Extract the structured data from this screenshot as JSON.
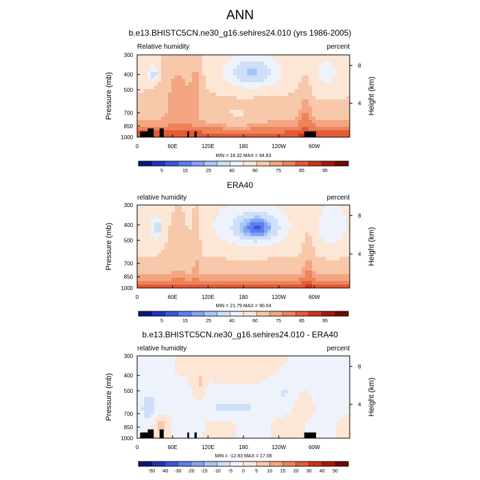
{
  "figure": {
    "title": "ANN"
  },
  "chart_data": [
    {
      "type": "heatmap",
      "title": "b.e13.BHISTC5CN.ne30_g16.sehires24.010 (yrs 1986-2005)",
      "left_label": "Relative humidity",
      "right_label": "percent",
      "xlabel": "",
      "ylabel": "Pressure (mb)",
      "y2label": "Height (km)",
      "x_ticks": [
        "0",
        "60E",
        "120E",
        "180",
        "120W",
        "60W"
      ],
      "x_tick_values": [
        0,
        60,
        120,
        180,
        240,
        300
      ],
      "xlim": [
        0,
        360
      ],
      "y_ticks": [
        "300",
        "400",
        "500",
        "700",
        "850",
        "1000"
      ],
      "y_tick_values": [
        300,
        400,
        500,
        700,
        850,
        1000
      ],
      "ylim": [
        300,
        1000
      ],
      "y2_ticks": [
        "8",
        "4"
      ],
      "y2_tick_values": [
        8,
        4
      ],
      "stats": "MIN = 18.32  MAX = 94.83",
      "min": 18.32,
      "max": 94.83,
      "colorbar_labels": [
        "5",
        "15",
        "25",
        "40",
        "60",
        "75",
        "85",
        "95"
      ],
      "colorbar_levels": [
        5,
        10,
        15,
        20,
        25,
        30,
        40,
        50,
        60,
        70,
        75,
        80,
        85,
        90,
        95
      ],
      "colorbar_colors": [
        "#08187a",
        "#2132b8",
        "#3a55dc",
        "#5b7ef0",
        "#82a4f4",
        "#a9c6f8",
        "#cfdff8",
        "#eef3fb",
        "#fce6d6",
        "#f8c8ab",
        "#f4a582",
        "#ee8258",
        "#e35a36",
        "#cb3318",
        "#a71808",
        "#6e0b03"
      ]
    },
    {
      "type": "heatmap",
      "title": "ERA40",
      "left_label": "relative humidity",
      "right_label": "percent",
      "xlabel": "",
      "ylabel": "Pressure (mb)",
      "y2label": "Height (km)",
      "x_ticks": [
        "0",
        "60E",
        "120E",
        "180",
        "120W",
        "60W"
      ],
      "x_tick_values": [
        0,
        60,
        120,
        180,
        240,
        300
      ],
      "xlim": [
        0,
        360
      ],
      "y_ticks": [
        "300",
        "400",
        "500",
        "700",
        "850",
        "1000"
      ],
      "y_tick_values": [
        300,
        400,
        500,
        700,
        850,
        1000
      ],
      "ylim": [
        300,
        1000
      ],
      "y2_ticks": [
        "8",
        "4"
      ],
      "y2_tick_values": [
        8,
        4
      ],
      "stats": "MIN = 21.79  MAX = 90.04",
      "min": 21.79,
      "max": 90.04,
      "colorbar_labels": [
        "5",
        "15",
        "25",
        "40",
        "60",
        "75",
        "85",
        "95"
      ],
      "colorbar_levels": [
        5,
        10,
        15,
        20,
        25,
        30,
        40,
        50,
        60,
        70,
        75,
        80,
        85,
        90,
        95
      ],
      "colorbar_colors": [
        "#08187a",
        "#2132b8",
        "#3a55dc",
        "#5b7ef0",
        "#82a4f4",
        "#a9c6f8",
        "#cfdff8",
        "#eef3fb",
        "#fce6d6",
        "#f8c8ab",
        "#f4a582",
        "#ee8258",
        "#e35a36",
        "#cb3318",
        "#a71808",
        "#6e0b03"
      ]
    },
    {
      "type": "heatmap",
      "title": "b.e13.BHISTC5CN.ne30_g16.sehires24.010 - ERA40",
      "left_label": "relative humidity",
      "right_label": "percent",
      "xlabel": "",
      "ylabel": "Pressure (mb)",
      "y2label": "Height (km)",
      "x_ticks": [
        "0",
        "60E",
        "120E",
        "180",
        "120W",
        "60W"
      ],
      "x_tick_values": [
        0,
        60,
        120,
        180,
        240,
        300
      ],
      "xlim": [
        0,
        360
      ],
      "y_ticks": [
        "300",
        "400",
        "500",
        "700",
        "850",
        "1000"
      ],
      "y_tick_values": [
        300,
        400,
        500,
        700,
        850,
        1000
      ],
      "ylim": [
        300,
        1000
      ],
      "y2_ticks": [
        "8",
        "4"
      ],
      "y2_tick_values": [
        8,
        4
      ],
      "stats": "MIN = -12.83  MAX = 17.06",
      "min": -12.83,
      "max": 17.06,
      "colorbar_labels": [
        "-50",
        "-40",
        "-30",
        "-20",
        "-15",
        "-10",
        "-5",
        "0",
        "5",
        "10",
        "15",
        "20",
        "30",
        "40",
        "50"
      ],
      "colorbar_levels": [
        -50,
        -40,
        -30,
        -20,
        -15,
        -10,
        -5,
        0,
        5,
        10,
        15,
        20,
        30,
        40,
        50
      ],
      "colorbar_colors": [
        "#08187a",
        "#2132b8",
        "#3a55dc",
        "#5b7ef0",
        "#82a4f4",
        "#a9c6f8",
        "#cfdff8",
        "#eef3fb",
        "#fce6d6",
        "#f8c8ab",
        "#f4a582",
        "#ee8258",
        "#e35a36",
        "#cb3318",
        "#a71808",
        "#6e0b03"
      ]
    }
  ]
}
